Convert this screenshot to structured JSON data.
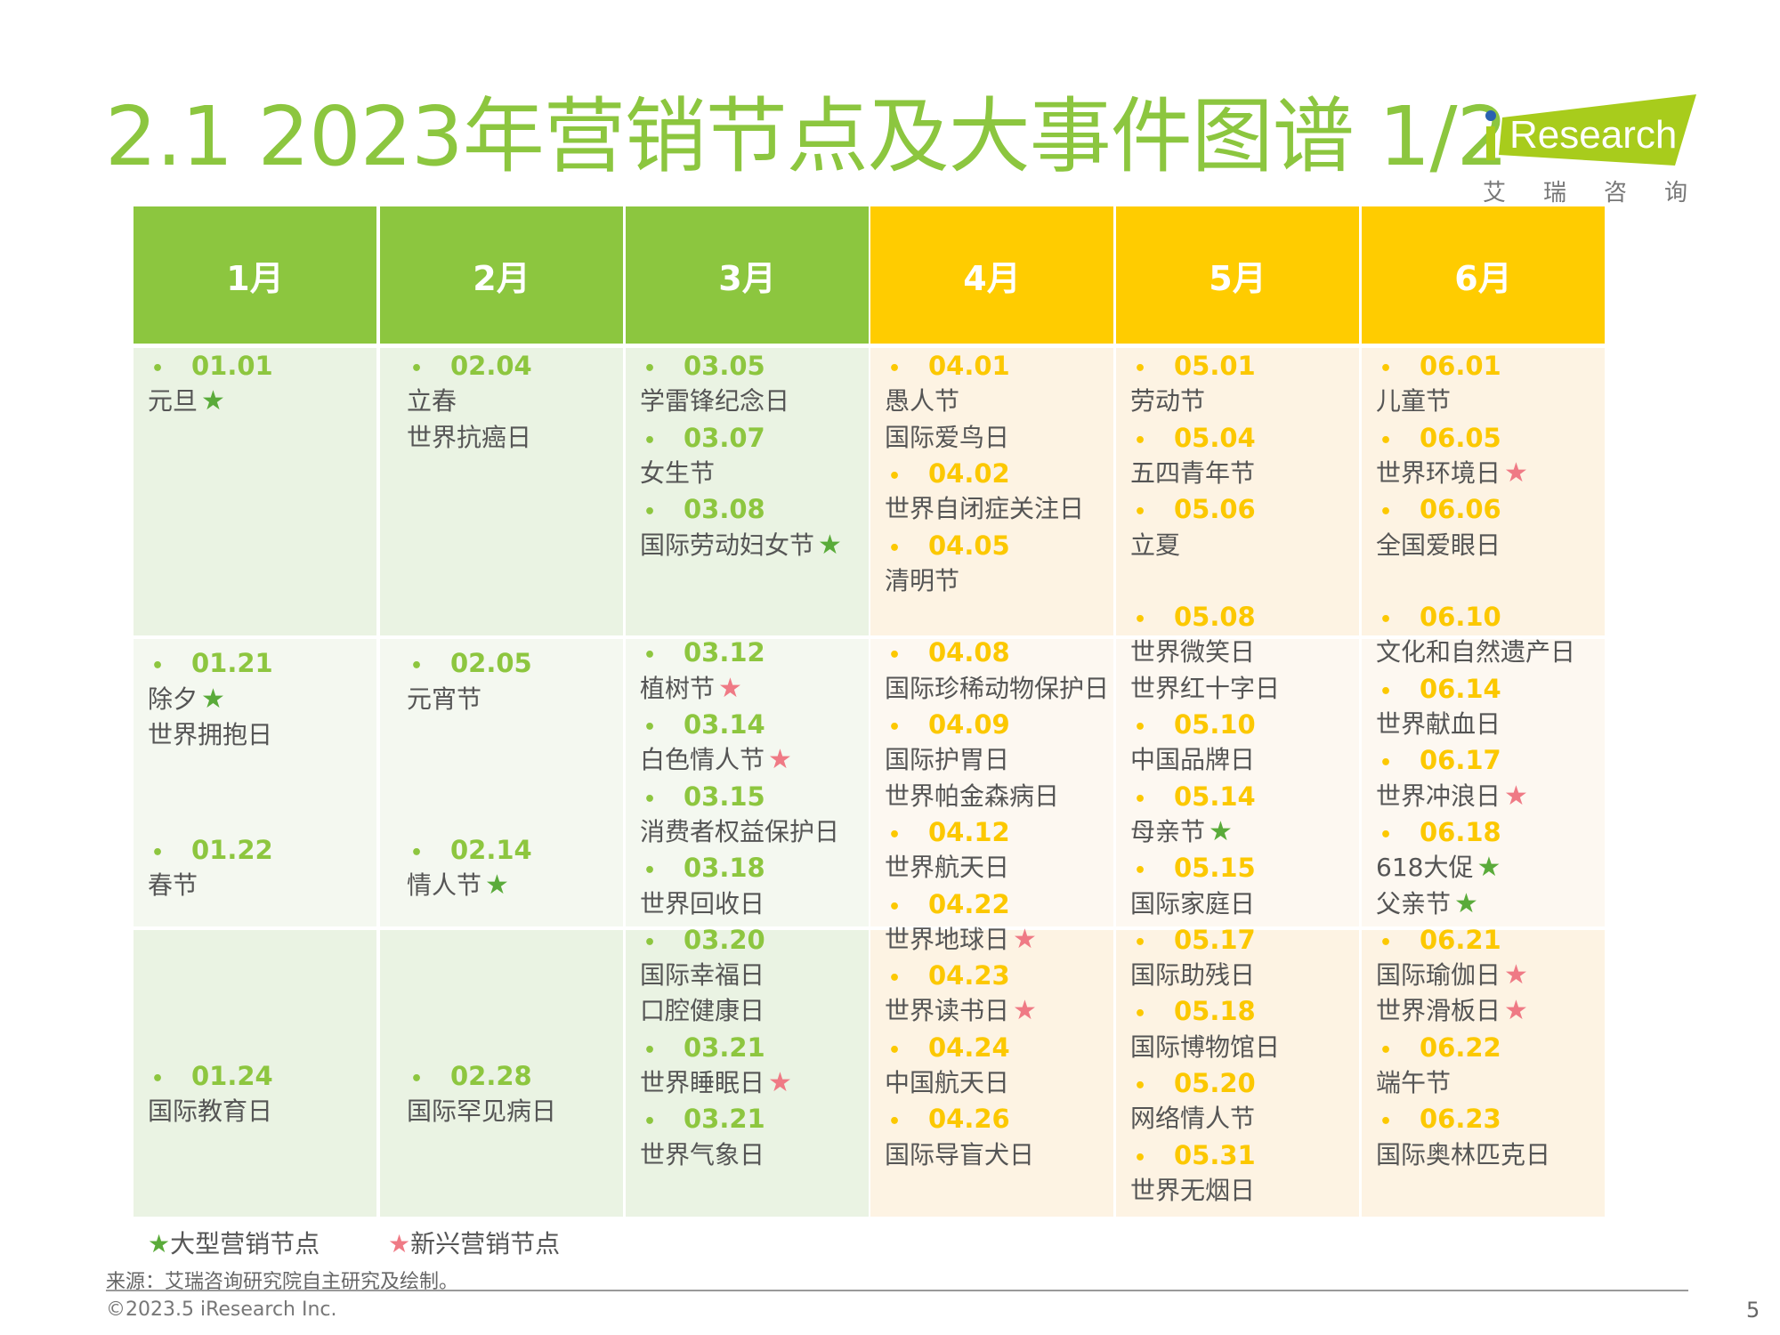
{
  "title": "2.1 2023年营销节点及大事件图谱 1/2",
  "logo": {
    "text": "iResearch",
    "subtitle": "艾瑞咨询"
  },
  "colors": {
    "green": "#8cc63f",
    "yellow": "#ffcc00",
    "star_major": "#5aab3a",
    "star_emerging": "#ef7a85",
    "text": "#555555"
  },
  "months": [
    {
      "label": "1月",
      "theme": "green",
      "groups": [
        {
          "date": "01.01",
          "events": [
            {
              "name": "元旦",
              "star": "major"
            }
          ]
        },
        {
          "date": "01.21",
          "events": [
            {
              "name": "除夕",
              "star": "major"
            },
            {
              "name": "世界拥抱日"
            }
          ]
        },
        {
          "date": "01.22",
          "events": [
            {
              "name": "春节"
            }
          ]
        },
        {
          "date": "01.24",
          "events": [
            {
              "name": "国际教育日"
            }
          ]
        }
      ]
    },
    {
      "label": "2月",
      "theme": "green",
      "groups": [
        {
          "date": "02.04",
          "events": [
            {
              "name": "立春"
            },
            {
              "name": "世界抗癌日"
            }
          ]
        },
        {
          "date": "02.05",
          "events": [
            {
              "name": "元宵节"
            }
          ]
        },
        {
          "date": "02.14",
          "events": [
            {
              "name": "情人节",
              "star": "major"
            }
          ]
        },
        {
          "date": "02.28",
          "events": [
            {
              "name": "国际罕见病日"
            }
          ]
        }
      ]
    },
    {
      "label": "3月",
      "theme": "green",
      "groups": [
        {
          "date": "03.05",
          "events": [
            {
              "name": "学雷锋纪念日"
            }
          ]
        },
        {
          "date": "03.07",
          "events": [
            {
              "name": "女生节"
            }
          ]
        },
        {
          "date": "03.08",
          "events": [
            {
              "name": "国际劳动妇女节",
              "star": "major"
            }
          ]
        },
        {
          "date": "03.12",
          "events": [
            {
              "name": "植树节",
              "star": "emerging"
            }
          ]
        },
        {
          "date": "03.14",
          "events": [
            {
              "name": "白色情人节",
              "star": "emerging"
            }
          ]
        },
        {
          "date": "03.15",
          "events": [
            {
              "name": "消费者权益保护日"
            }
          ]
        },
        {
          "date": "03.18",
          "events": [
            {
              "name": "世界回收日"
            }
          ]
        },
        {
          "date": "03.20",
          "events": [
            {
              "name": "国际幸福日"
            },
            {
              "name": "口腔健康日"
            }
          ]
        },
        {
          "date": "03.21",
          "events": [
            {
              "name": "世界睡眠日",
              "star": "emerging"
            }
          ]
        },
        {
          "date": "03.21",
          "events": [
            {
              "name": "世界气象日"
            }
          ]
        }
      ]
    },
    {
      "label": "4月",
      "theme": "yellow",
      "groups": [
        {
          "date": "04.01",
          "events": [
            {
              "name": "愚人节"
            },
            {
              "name": "国际爱鸟日"
            }
          ]
        },
        {
          "date": "04.02",
          "events": [
            {
              "name": "世界自闭症关注日"
            }
          ]
        },
        {
          "date": "04.05",
          "events": [
            {
              "name": "清明节"
            }
          ]
        },
        {
          "date": "04.08",
          "events": [
            {
              "name": "国际珍稀动物保护日"
            }
          ]
        },
        {
          "date": "04.09",
          "events": [
            {
              "name": "国际护胃日"
            },
            {
              "name": "世界帕金森病日"
            }
          ]
        },
        {
          "date": "04.12",
          "events": [
            {
              "name": "世界航天日"
            }
          ]
        },
        {
          "date": "04.22",
          "events": [
            {
              "name": "世界地球日",
              "star": "emerging"
            }
          ]
        },
        {
          "date": "04.23",
          "events": [
            {
              "name": "世界读书日",
              "star": "emerging"
            }
          ]
        },
        {
          "date": "04.24",
          "events": [
            {
              "name": "中国航天日"
            }
          ]
        },
        {
          "date": "04.26",
          "events": [
            {
              "name": "国际导盲犬日"
            }
          ]
        }
      ]
    },
    {
      "label": "5月",
      "theme": "yellow",
      "groups": [
        {
          "date": "05.01",
          "events": [
            {
              "name": "劳动节"
            }
          ]
        },
        {
          "date": "05.04",
          "events": [
            {
              "name": "五四青年节"
            }
          ]
        },
        {
          "date": "05.06",
          "events": [
            {
              "name": "立夏"
            }
          ]
        },
        {
          "date": "05.08",
          "events": [
            {
              "name": "世界微笑日"
            },
            {
              "name": "世界红十字日"
            }
          ]
        },
        {
          "date": "05.10",
          "events": [
            {
              "name": "中国品牌日"
            }
          ]
        },
        {
          "date": "05.14",
          "events": [
            {
              "name": "母亲节",
              "star": "major"
            }
          ]
        },
        {
          "date": "05.15",
          "events": [
            {
              "name": "国际家庭日"
            }
          ]
        },
        {
          "date": "05.17",
          "events": [
            {
              "name": "国际助残日"
            }
          ]
        },
        {
          "date": "05.18",
          "events": [
            {
              "name": "国际博物馆日"
            }
          ]
        },
        {
          "date": "05.20",
          "events": [
            {
              "name": "网络情人节"
            }
          ]
        },
        {
          "date": "05.31",
          "events": [
            {
              "name": "世界无烟日"
            }
          ]
        }
      ]
    },
    {
      "label": "6月",
      "theme": "yellow",
      "groups": [
        {
          "date": "06.01",
          "events": [
            {
              "name": "儿童节"
            }
          ]
        },
        {
          "date": "06.05",
          "events": [
            {
              "name": "世界环境日",
              "star": "emerging"
            }
          ]
        },
        {
          "date": "06.06",
          "events": [
            {
              "name": "全国爱眼日"
            }
          ]
        },
        {
          "date": "06.10",
          "events": [
            {
              "name": "文化和自然遗产日"
            }
          ]
        },
        {
          "date": "06.14",
          "events": [
            {
              "name": "世界献血日"
            }
          ]
        },
        {
          "date": "06.17",
          "events": [
            {
              "name": "世界冲浪日",
              "star": "emerging"
            }
          ]
        },
        {
          "date": "06.18",
          "events": [
            {
              "name": "618大促",
              "star": "major"
            },
            {
              "name": "父亲节",
              "star": "major"
            }
          ]
        },
        {
          "date": "06.21",
          "events": [
            {
              "name": "国际瑜伽日",
              "star": "emerging"
            },
            {
              "name": "世界滑板日",
              "star": "emerging"
            }
          ]
        },
        {
          "date": "06.22",
          "events": [
            {
              "name": "端午节"
            }
          ]
        },
        {
          "date": "06.23",
          "events": [
            {
              "name": "国际奥林匹克日"
            }
          ]
        }
      ]
    }
  ],
  "legend": {
    "major": "大型营销节点",
    "emerging": "新兴营销节点"
  },
  "footer": {
    "source": "来源：艾瑞咨询研究院自主研究及绘制。",
    "copyright": "©2023.5 iResearch Inc.",
    "page": "5"
  }
}
